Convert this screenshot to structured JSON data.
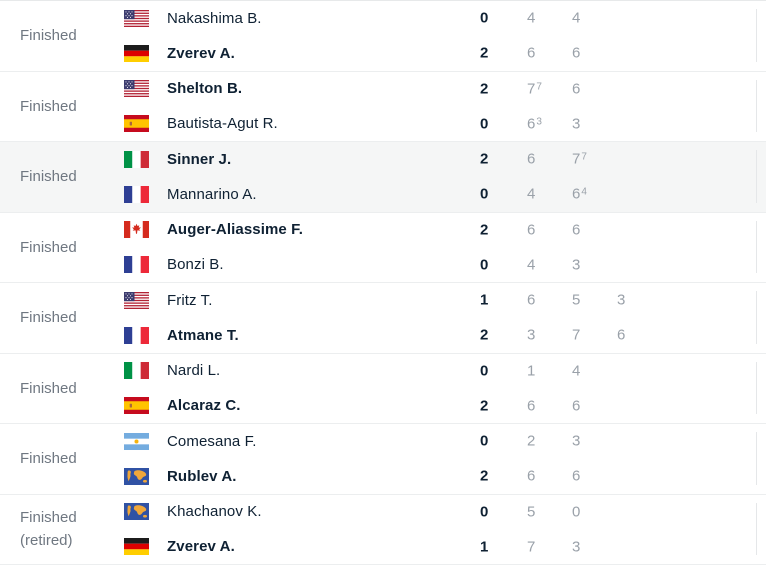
{
  "colors": {
    "text_dark": "#0f2133",
    "status_gray": "#6f7781",
    "set_score_gray": "#9aa1a9",
    "highlight_row_bg": "#f5f6f6",
    "divider": "#eceeef"
  },
  "matches": [
    {
      "status": "Finished",
      "status_note": "",
      "players": [
        {
          "flag": "usa",
          "name": "Nakashima B.",
          "winner": false,
          "sets_won": "0",
          "s1": "4",
          "s2": "4"
        },
        {
          "flag": "germany",
          "name": "Zverev A.",
          "winner": true,
          "sets_won": "2",
          "s1": "6",
          "s2": "6"
        }
      ]
    },
    {
      "status": "Finished",
      "status_note": "",
      "players": [
        {
          "flag": "usa",
          "name": "Shelton B.",
          "winner": true,
          "sets_won": "2",
          "s1": "7",
          "s1_tb": "7",
          "s2": "6"
        },
        {
          "flag": "spain",
          "name": "Bautista-Agut R.",
          "winner": false,
          "sets_won": "0",
          "s1": "6",
          "s1_tb": "3",
          "s2": "3"
        }
      ]
    },
    {
      "status": "Finished",
      "status_note": "",
      "highlighted": true,
      "players": [
        {
          "flag": "italy",
          "name": "Sinner J.",
          "winner": true,
          "sets_won": "2",
          "s1": "6",
          "s2": "7",
          "s2_tb": "7"
        },
        {
          "flag": "france",
          "name": "Mannarino A.",
          "winner": false,
          "sets_won": "0",
          "s1": "4",
          "s2": "6",
          "s2_tb": "4"
        }
      ]
    },
    {
      "status": "Finished",
      "status_note": "",
      "players": [
        {
          "flag": "canada",
          "name": "Auger-Aliassime F.",
          "winner": true,
          "sets_won": "2",
          "s1": "6",
          "s2": "6"
        },
        {
          "flag": "france",
          "name": "Bonzi B.",
          "winner": false,
          "sets_won": "0",
          "s1": "4",
          "s2": "3"
        }
      ]
    },
    {
      "status": "Finished",
      "status_note": "",
      "players": [
        {
          "flag": "usa",
          "name": "Fritz T.",
          "winner": false,
          "sets_won": "1",
          "s1": "6",
          "s2": "5",
          "s3": "3"
        },
        {
          "flag": "france",
          "name": "Atmane T.",
          "winner": true,
          "sets_won": "2",
          "s1": "3",
          "s2": "7",
          "s3": "6"
        }
      ]
    },
    {
      "status": "Finished",
      "status_note": "",
      "players": [
        {
          "flag": "italy",
          "name": "Nardi L.",
          "winner": false,
          "sets_won": "0",
          "s1": "1",
          "s2": "4"
        },
        {
          "flag": "spain",
          "name": "Alcaraz C.",
          "winner": true,
          "sets_won": "2",
          "s1": "6",
          "s2": "6"
        }
      ]
    },
    {
      "status": "Finished",
      "status_note": "",
      "players": [
        {
          "flag": "argentina",
          "name": "Comesana F.",
          "winner": false,
          "sets_won": "0",
          "s1": "2",
          "s2": "3"
        },
        {
          "flag": "world",
          "name": "Rublev A.",
          "winner": true,
          "sets_won": "2",
          "s1": "6",
          "s2": "6"
        }
      ]
    },
    {
      "status": "Finished",
      "status_note": "(retired)",
      "players": [
        {
          "flag": "world",
          "name": "Khachanov K.",
          "winner": false,
          "sets_won": "0",
          "s1": "5",
          "s2": "0"
        },
        {
          "flag": "germany",
          "name": "Zverev A.",
          "winner": true,
          "sets_won": "1",
          "s1": "7",
          "s2": "3"
        }
      ]
    }
  ]
}
